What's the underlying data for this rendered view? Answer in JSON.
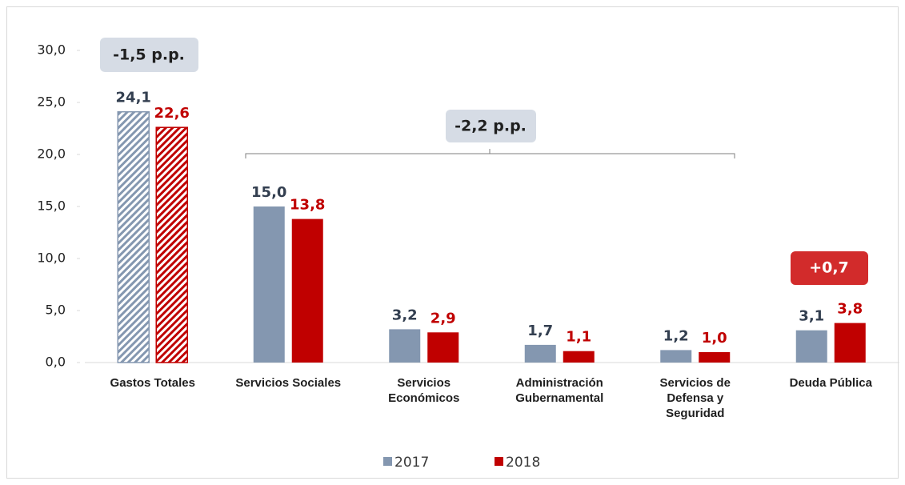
{
  "chart_data": {
    "type": "bar",
    "categories": [
      "Gastos Totales",
      "Servicios Sociales",
      "Servicios Económicos",
      "Administración Gubernamental",
      "Servicios de Defensa y Seguridad",
      "Deuda Pública"
    ],
    "series": [
      {
        "name": "2017",
        "color": "#8497b0",
        "label_color": "#333f50",
        "values": [
          24.1,
          15.0,
          3.2,
          1.7,
          1.2,
          3.1
        ],
        "value_labels": [
          "24,1",
          "15,0",
          "3,2",
          "1,7",
          "1,2",
          "3,1"
        ]
      },
      {
        "name": "2018",
        "color": "#c00000",
        "label_color": "#c00000",
        "values": [
          22.6,
          13.8,
          2.9,
          1.1,
          1.0,
          3.8
        ],
        "value_labels": [
          "22,6",
          "13,8",
          "2,9",
          "1,1",
          "1,0",
          "3,8"
        ]
      }
    ],
    "ylim": [
      0,
      30
    ],
    "yticks": [
      {
        "value": 0,
        "label": "0,0"
      },
      {
        "value": 5,
        "label": "5,0"
      },
      {
        "value": 10,
        "label": "10,0"
      },
      {
        "value": 15,
        "label": "15,0"
      },
      {
        "value": 20,
        "label": "20,0"
      },
      {
        "value": 25,
        "label": "25,0"
      },
      {
        "value": 30,
        "label": "30,0"
      }
    ],
    "annotations": [
      "-1,5 p.p.",
      "-2,2 p.p.",
      "+0,7"
    ]
  }
}
